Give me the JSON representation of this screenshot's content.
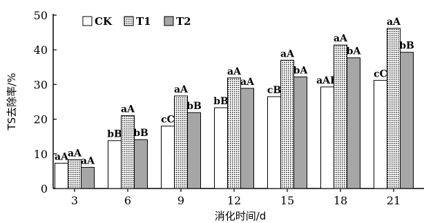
{
  "chart_data": {
    "type": "bar",
    "categories": [
      "3",
      "6",
      "9",
      "12",
      "15",
      "18",
      "21"
    ],
    "series": [
      {
        "name": "CK",
        "values": [
          7.3,
          13.8,
          18.0,
          23.3,
          26.5,
          29.3,
          31.2
        ],
        "labels": [
          "aA",
          "bB",
          "cC",
          "bB",
          "cB",
          "aAB",
          "cC"
        ],
        "color": "#ffffff"
      },
      {
        "name": "T1",
        "values": [
          8.3,
          21.0,
          26.7,
          31.9,
          37.0,
          41.4,
          46.2
        ],
        "labels": [
          "aA",
          "aA",
          "aA",
          "aA",
          "aA",
          "aA",
          "aA"
        ],
        "color": "#dddddd"
      },
      {
        "name": "T2",
        "values": [
          6.1,
          14.1,
          21.9,
          28.9,
          32.2,
          37.7,
          39.3
        ],
        "labels": [
          "aA",
          "bB",
          "bB",
          "aA",
          "bA",
          "bA",
          "bB"
        ],
        "color": "#a6a6a6"
      }
    ],
    "xlabel": "消化时间/d",
    "ylabel": "TS去除率/%",
    "ylim": [
      0,
      50
    ],
    "yticks": [
      0,
      10,
      20,
      30,
      40,
      50
    ],
    "legend_position": "top-left",
    "grid": false
  }
}
